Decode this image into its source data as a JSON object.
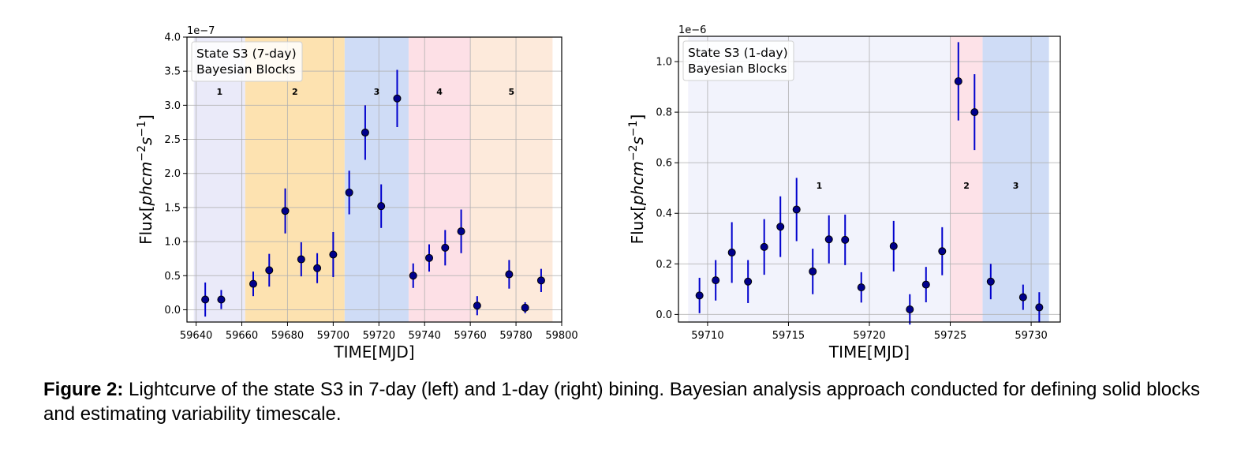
{
  "caption": {
    "label": "Figure 2:",
    "text": " Lightcurve of the state S3 in 7-day (left) and 1-day (right) bining. Bayesian analysis approach conducted for defining solid blocks and estimating variability timescale."
  },
  "chart_data": [
    {
      "type": "scatter",
      "title": "",
      "legend_text": [
        "State S3 (7-day)",
        "Bayesian Blocks"
      ],
      "legend_placement": "top-left",
      "xlabel": "TIME[MJD]",
      "ylabel": "Flux[phcm^-2s^-1]",
      "y_offset_label": "1e−7",
      "xlim": [
        59636,
        59800
      ],
      "ylim": [
        -0.18,
        4.0
      ],
      "y_scale_exponent": -7,
      "grid": true,
      "xticks": [
        59640,
        59660,
        59680,
        59700,
        59720,
        59740,
        59760,
        59780,
        59800
      ],
      "yticks": [
        0.0,
        0.5,
        1.0,
        1.5,
        2.0,
        2.5,
        3.0,
        3.5,
        4.0
      ],
      "ytick_labels": [
        "0.0",
        "0.5",
        "1.0",
        "1.5",
        "2.0",
        "2.5",
        "3.0",
        "3.5",
        "4.0"
      ],
      "marker_color": "#00008b",
      "errorbar_color": "#0000cd",
      "blocks": [
        {
          "label": "1",
          "start": 59639,
          "end": 59661.5,
          "color": "#eaeaf9"
        },
        {
          "label": "2",
          "start": 59661.5,
          "end": 59705,
          "color": "#fde2b0"
        },
        {
          "label": "3",
          "start": 59705,
          "end": 59733,
          "color": "#cfdcf6"
        },
        {
          "label": "4",
          "start": 59733,
          "end": 59760,
          "color": "#fde0e6"
        },
        {
          "label": "5",
          "start": 59760,
          "end": 59796,
          "color": "#fdeadb"
        }
      ],
      "block_label_y": 3.2,
      "points": [
        {
          "x": 59644,
          "y": 0.15,
          "err": 0.25
        },
        {
          "x": 59651,
          "y": 0.15,
          "err": 0.14
        },
        {
          "x": 59665,
          "y": 0.38,
          "err": 0.18
        },
        {
          "x": 59672,
          "y": 0.58,
          "err": 0.24
        },
        {
          "x": 59679,
          "y": 1.45,
          "err": 0.33
        },
        {
          "x": 59686,
          "y": 0.74,
          "err": 0.25
        },
        {
          "x": 59693,
          "y": 0.61,
          "err": 0.22
        },
        {
          "x": 59700,
          "y": 0.81,
          "err": 0.33
        },
        {
          "x": 59707,
          "y": 1.72,
          "err": 0.32
        },
        {
          "x": 59714,
          "y": 2.6,
          "err": 0.4
        },
        {
          "x": 59721,
          "y": 1.52,
          "err": 0.32
        },
        {
          "x": 59728,
          "y": 3.1,
          "err": 0.42
        },
        {
          "x": 59735,
          "y": 0.5,
          "err": 0.18
        },
        {
          "x": 59742,
          "y": 0.76,
          "err": 0.2
        },
        {
          "x": 59749,
          "y": 0.91,
          "err": 0.26
        },
        {
          "x": 59756,
          "y": 1.15,
          "err": 0.32
        },
        {
          "x": 59763,
          "y": 0.06,
          "err": 0.14
        },
        {
          "x": 59777,
          "y": 0.52,
          "err": 0.21
        },
        {
          "x": 59784,
          "y": 0.03,
          "err": 0.08
        },
        {
          "x": 59791,
          "y": 0.43,
          "err": 0.17
        }
      ]
    },
    {
      "type": "scatter",
      "title": "",
      "legend_text": [
        "State S3 (1-day)",
        "Bayesian Blocks"
      ],
      "legend_placement": "top-left",
      "xlabel": "TIME[MJD]",
      "ylabel": "Flux[phcm^-2s^-1]",
      "y_offset_label": "1e−6",
      "xlim": [
        59708.2,
        59731.8
      ],
      "ylim": [
        -0.03,
        1.1
      ],
      "y_scale_exponent": -6,
      "grid": true,
      "xticks": [
        59710,
        59715,
        59720,
        59725,
        59730
      ],
      "yticks": [
        0.0,
        0.2,
        0.4,
        0.6,
        0.8,
        1.0
      ],
      "ytick_labels": [
        "0.0",
        "0.2",
        "0.4",
        "0.6",
        "0.8",
        "1.0"
      ],
      "marker_color": "#00008b",
      "errorbar_color": "#0000cd",
      "blocks": [
        {
          "label": "1",
          "start": 59708.8,
          "end": 59725.0,
          "color": "#f2f3fc"
        },
        {
          "label": "2",
          "start": 59725.0,
          "end": 59727.0,
          "color": "#fde2e8"
        },
        {
          "label": "3",
          "start": 59727.0,
          "end": 59731.1,
          "color": "#cfdcf6"
        }
      ],
      "block_label_y": 0.51,
      "points": [
        {
          "x": 59709.5,
          "y": 0.075,
          "err": 0.07
        },
        {
          "x": 59710.5,
          "y": 0.135,
          "err": 0.08
        },
        {
          "x": 59711.5,
          "y": 0.245,
          "err": 0.12
        },
        {
          "x": 59712.5,
          "y": 0.13,
          "err": 0.085
        },
        {
          "x": 59713.5,
          "y": 0.267,
          "err": 0.11
        },
        {
          "x": 59714.5,
          "y": 0.347,
          "err": 0.12
        },
        {
          "x": 59715.5,
          "y": 0.415,
          "err": 0.125
        },
        {
          "x": 59716.5,
          "y": 0.17,
          "err": 0.09
        },
        {
          "x": 59717.5,
          "y": 0.297,
          "err": 0.095
        },
        {
          "x": 59718.5,
          "y": 0.295,
          "err": 0.1
        },
        {
          "x": 59719.5,
          "y": 0.107,
          "err": 0.06
        },
        {
          "x": 59721.5,
          "y": 0.27,
          "err": 0.1
        },
        {
          "x": 59722.5,
          "y": 0.02,
          "err": 0.06
        },
        {
          "x": 59723.5,
          "y": 0.118,
          "err": 0.07
        },
        {
          "x": 59724.5,
          "y": 0.25,
          "err": 0.095
        },
        {
          "x": 59725.5,
          "y": 0.922,
          "err": 0.155
        },
        {
          "x": 59726.5,
          "y": 0.8,
          "err": 0.15
        },
        {
          "x": 59727.5,
          "y": 0.13,
          "err": 0.07
        },
        {
          "x": 59729.5,
          "y": 0.068,
          "err": 0.05
        },
        {
          "x": 59730.5,
          "y": 0.028,
          "err": 0.06
        }
      ]
    }
  ]
}
